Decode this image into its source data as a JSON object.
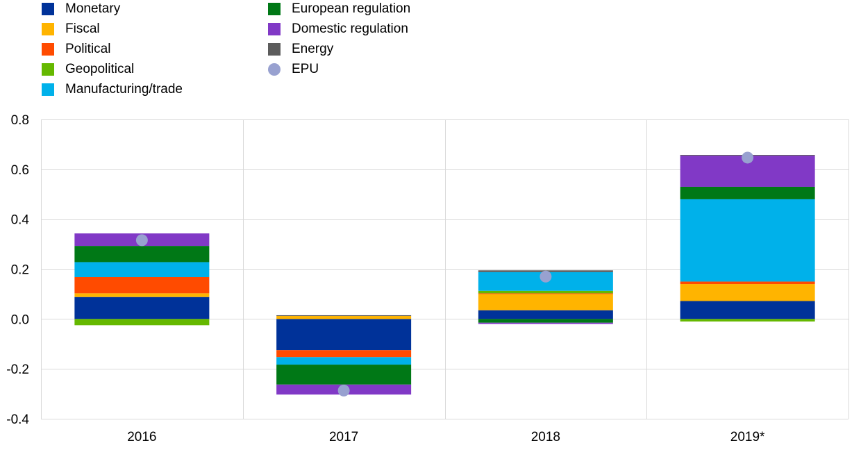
{
  "chart_data": {
    "type": "bar",
    "stacked": true,
    "categories": [
      "2016",
      "2017",
      "2018",
      "2019*"
    ],
    "ylim": [
      -0.4,
      0.8
    ],
    "yticks": [
      -0.4,
      -0.2,
      0.0,
      0.2,
      0.4,
      0.6,
      0.8
    ],
    "ytick_labels": [
      "-0.4",
      "-0.2",
      "0.0",
      "0.2",
      "0.4",
      "0.6",
      "0.8"
    ],
    "grid": true,
    "legend_position": "top-left",
    "series": [
      {
        "name": "Monetary",
        "color": "#003299",
        "values": [
          0.088,
          -0.125,
          0.035,
          0.072
        ]
      },
      {
        "name": "Fiscal",
        "color": "#FFB400",
        "values": [
          0.015,
          0.012,
          0.065,
          0.068
        ]
      },
      {
        "name": "Political",
        "color": "#FF4B00",
        "values": [
          0.065,
          -0.028,
          0.003,
          0.01
        ]
      },
      {
        "name": "Geopolitical",
        "color": "#65B800",
        "values": [
          -0.025,
          0.0,
          0.01,
          -0.01
        ]
      },
      {
        "name": "Manufacturing/trade",
        "color": "#00B1EA",
        "values": [
          0.06,
          -0.03,
          0.075,
          0.33
        ]
      },
      {
        "name": "European regulation",
        "color": "#007816",
        "values": [
          0.065,
          -0.08,
          -0.015,
          0.05
        ]
      },
      {
        "name": "Domestic regulation",
        "color": "#8139C6",
        "values": [
          0.05,
          -0.04,
          -0.005,
          0.125
        ]
      },
      {
        "name": "Energy",
        "color": "#5C5C5C",
        "values": [
          0.0,
          0.003,
          0.007,
          0.003
        ]
      }
    ],
    "epu": {
      "name": "EPU",
      "color": "#98A1D0",
      "values": [
        0.316,
        -0.287,
        0.17,
        0.647
      ]
    }
  }
}
